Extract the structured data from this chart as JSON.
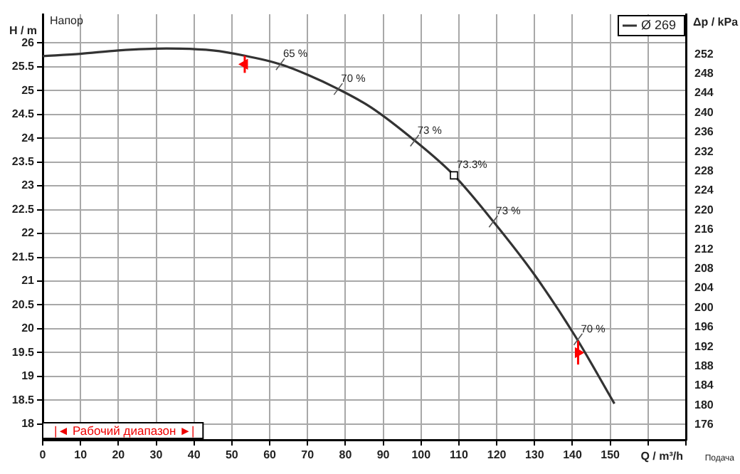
{
  "chart_data": {
    "type": "line",
    "xlabel": "Q / m³/h",
    "ylabel": "H / m",
    "y2label": "Δp / kPa",
    "x": [
      0,
      10,
      20,
      32.7,
      45,
      53.4,
      62.8,
      70,
      78.1,
      86.7,
      98.3,
      108.7,
      119.1,
      130,
      140.7,
      151.1
    ],
    "series": [
      {
        "name": "Ø 269",
        "color": "#333333",
        "values": [
          25.72,
          25.77,
          25.84,
          25.88,
          25.84,
          25.73,
          25.55,
          25.33,
          25.03,
          24.65,
          23.95,
          23.22,
          22.25,
          21.13,
          19.85,
          18.43
        ]
      },
      {
        "type": "scatter",
        "color": "#ff0000",
        "marker": "triangle",
        "x": [
          53.4,
          141.5
        ],
        "values": [
          25.55,
          19.5
        ],
        "errors": [
          0.18,
          0.25
        ]
      }
    ],
    "xlim": [
      0,
      170
    ],
    "ylim": [
      17.67,
      26.6
    ],
    "y2lim": [
      172.9,
      260.2
    ],
    "xticks": [
      0,
      10,
      20,
      30,
      40,
      50,
      60,
      70,
      80,
      90,
      100,
      110,
      120,
      130,
      140,
      150,
      {
        "value": 160,
        "label": null
      },
      {
        "value": 170,
        "label": null
      }
    ],
    "yticks": [
      18,
      18.5,
      19,
      19.5,
      20,
      20.5,
      21,
      21.5,
      22,
      22.5,
      23,
      23.5,
      24,
      24.5,
      25,
      25.5,
      26
    ],
    "y2ticks": [
      176,
      180,
      184,
      188,
      192,
      196,
      200,
      204,
      208,
      212,
      216,
      220,
      224,
      228,
      232,
      236,
      240,
      244,
      248,
      252
    ],
    "annotations": [
      {
        "text": "65 %",
        "x": 62.8,
        "y": 25.55
      },
      {
        "text": "70 %",
        "x": 78.1,
        "y": 25.03
      },
      {
        "text": "73 %",
        "x": 98.3,
        "y": 23.95
      },
      {
        "text": "73.3%",
        "x": 108.7,
        "y": 23.22
      },
      {
        "text": "73 %",
        "x": 119.1,
        "y": 22.25
      },
      {
        "text": "70 %",
        "x": 141.5,
        "y": 19.78
      },
      "Напор",
      "Подача",
      "|◄ Рабочий диапазон ►|"
    ],
    "grid": true,
    "legend": "top right",
    "marker": "none",
    "line_style": "solid"
  }
}
